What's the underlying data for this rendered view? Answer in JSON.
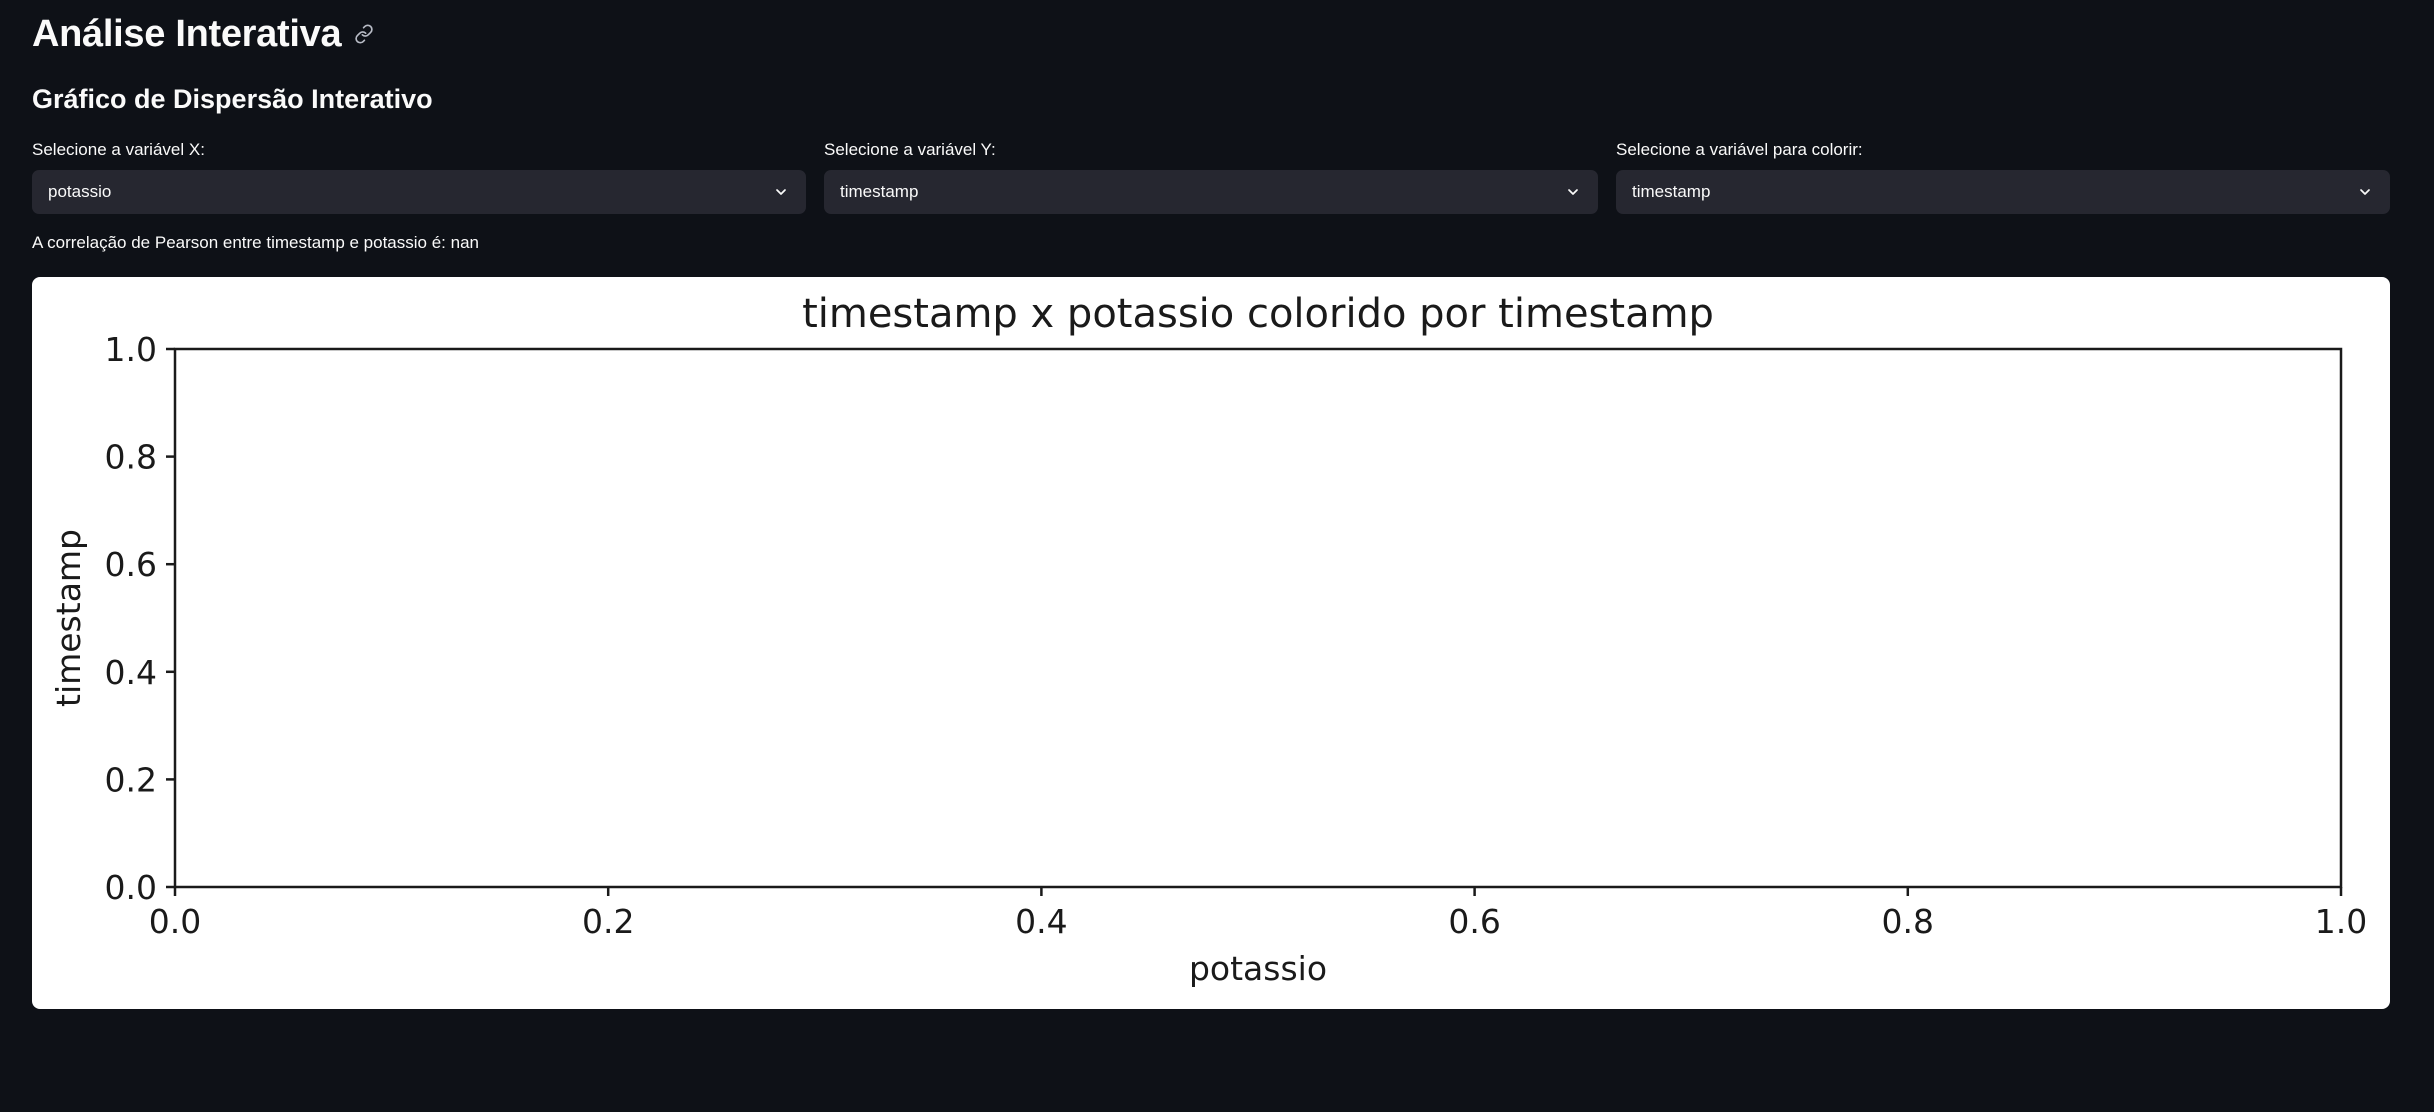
{
  "header": {
    "title": "Análise Interativa",
    "link_icon": "link-icon"
  },
  "subheader": "Gráfico de Dispersão Interativo",
  "selects": [
    {
      "label": "Selecione a variável X:",
      "value": "potassio"
    },
    {
      "label": "Selecione a variável Y:",
      "value": "timestamp"
    },
    {
      "label": "Selecione a variável para colorir:",
      "value": "timestamp"
    }
  ],
  "correlation_text": "A correlação de Pearson entre timestamp e potassio é: nan",
  "chart_data": {
    "type": "scatter",
    "title": "timestamp x potassio colorido por timestamp",
    "xlabel": "potassio",
    "ylabel": "timestamp",
    "xlim": [
      0,
      1
    ],
    "ylim": [
      0,
      1
    ],
    "x_ticks": [
      "0.0",
      "0.2",
      "0.4",
      "0.6",
      "0.8",
      "1.0"
    ],
    "y_ticks": [
      "0.0",
      "0.2",
      "0.4",
      "0.6",
      "0.8",
      "1.0"
    ],
    "x": [],
    "y": [],
    "grid": false
  },
  "colors": {
    "background": "#0e1117",
    "select_background": "#262730",
    "text": "#fafafa",
    "chart_background": "#ffffff"
  }
}
